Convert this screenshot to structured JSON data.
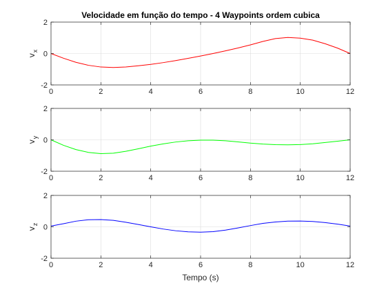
{
  "figure": {
    "title": "Velocidade em função do tempo - 4 Waypoints ordem cubica",
    "xlabel": "Tempo (s)"
  },
  "chart_data": [
    {
      "type": "line",
      "ylabel_main": "v",
      "ylabel_sub": "x",
      "xlim": [
        0,
        12
      ],
      "ylim": [
        -2,
        2
      ],
      "xticks": [
        0,
        2,
        4,
        6,
        8,
        10,
        12
      ],
      "yticks": [
        -2,
        0,
        2
      ],
      "grid": true,
      "color": "#ff0000",
      "series": [
        {
          "x": [
            0,
            0.5,
            1,
            1.5,
            2,
            2.5,
            3,
            3.5,
            4,
            4.5,
            5,
            5.5,
            6,
            6.5,
            7,
            7.5,
            8,
            8.5,
            9,
            9.5,
            10,
            10.5,
            11,
            11.5,
            12
          ],
          "values": [
            0,
            -0.3,
            -0.56,
            -0.75,
            -0.86,
            -0.89,
            -0.86,
            -0.78,
            -0.69,
            -0.58,
            -0.45,
            -0.31,
            -0.16,
            0,
            0.17,
            0.35,
            0.55,
            0.77,
            0.95,
            1.02,
            0.98,
            0.85,
            0.62,
            0.34,
            0
          ]
        }
      ]
    },
    {
      "type": "line",
      "ylabel_main": "v",
      "ylabel_sub": "y",
      "xlim": [
        0,
        12
      ],
      "ylim": [
        -2,
        2
      ],
      "xticks": [
        0,
        2,
        4,
        6,
        8,
        10,
        12
      ],
      "yticks": [
        -2,
        0,
        2
      ],
      "grid": true,
      "color": "#00ff00",
      "series": [
        {
          "x": [
            0,
            0.5,
            1,
            1.5,
            2,
            2.5,
            3,
            3.5,
            4,
            4.5,
            5,
            5.5,
            6,
            6.5,
            7,
            7.5,
            8,
            8.5,
            9,
            9.5,
            10,
            10.5,
            11,
            11.5,
            12
          ],
          "values": [
            0,
            -0.35,
            -0.62,
            -0.8,
            -0.88,
            -0.85,
            -0.73,
            -0.57,
            -0.4,
            -0.26,
            -0.14,
            -0.06,
            -0.02,
            -0.02,
            -0.06,
            -0.13,
            -0.21,
            -0.27,
            -0.31,
            -0.32,
            -0.3,
            -0.25,
            -0.17,
            -0.09,
            0
          ]
        }
      ]
    },
    {
      "type": "line",
      "ylabel_main": "v",
      "ylabel_sub": "z",
      "xlim": [
        0,
        12
      ],
      "ylim": [
        -2,
        2
      ],
      "xticks": [
        0,
        2,
        4,
        6,
        8,
        10,
        12
      ],
      "yticks": [
        -2,
        0,
        2
      ],
      "grid": true,
      "color": "#0000ff",
      "series": [
        {
          "x": [
            0,
            0.5,
            1,
            1.5,
            2,
            2.5,
            3,
            3.5,
            4,
            4.5,
            5,
            5.5,
            6,
            6.5,
            7,
            7.5,
            8,
            8.5,
            9,
            9.5,
            10,
            10.5,
            11,
            11.5,
            12
          ],
          "values": [
            0.05,
            0.2,
            0.36,
            0.45,
            0.46,
            0.41,
            0.29,
            0.15,
            0,
            -0.14,
            -0.25,
            -0.32,
            -0.34,
            -0.31,
            -0.21,
            -0.07,
            0.08,
            0.22,
            0.31,
            0.36,
            0.37,
            0.34,
            0.27,
            0.17,
            0.05
          ]
        }
      ]
    }
  ]
}
